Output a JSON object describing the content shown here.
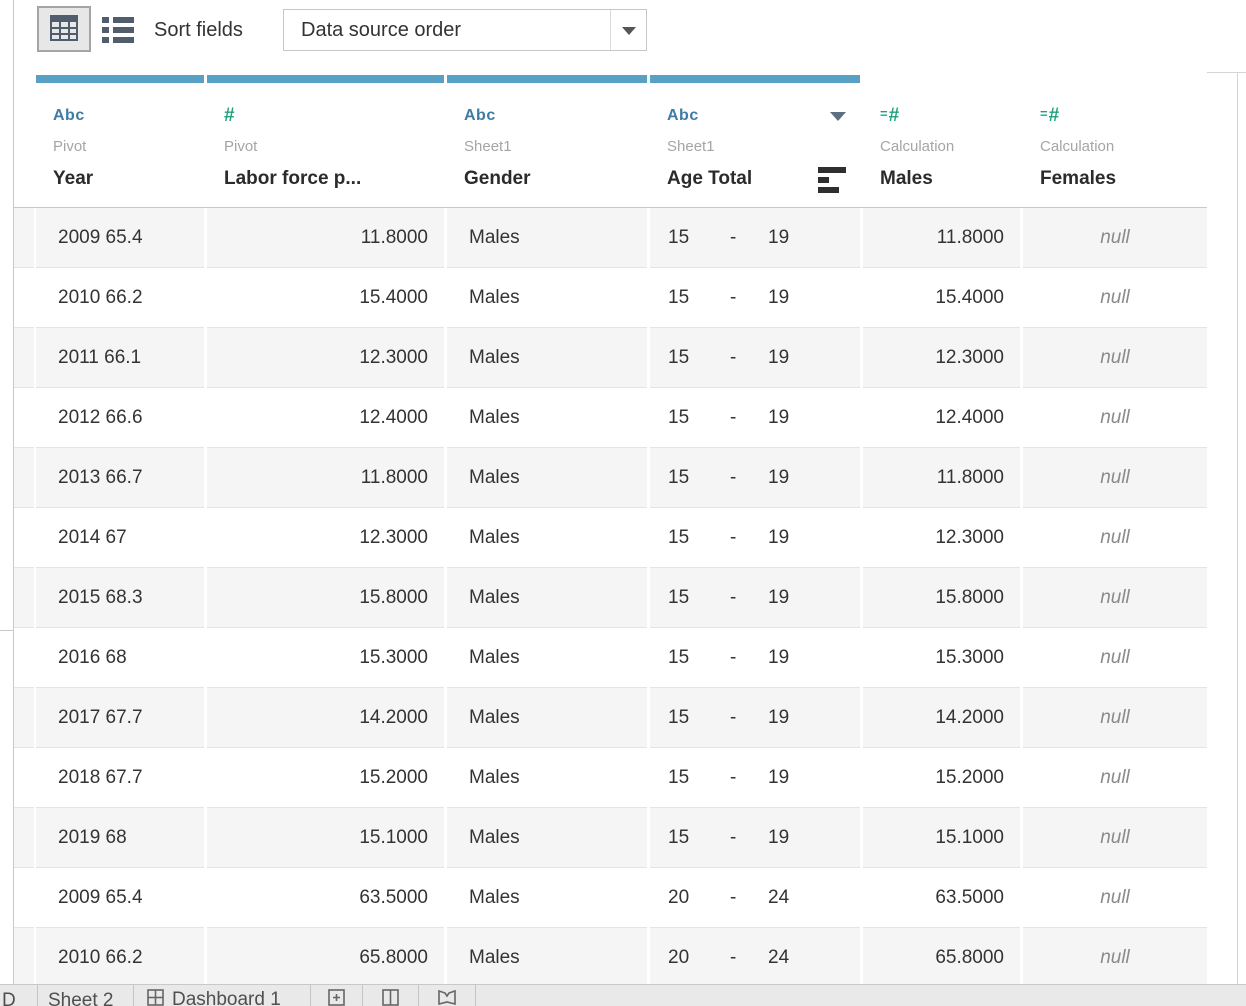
{
  "colors": {
    "column_accent_bar": "#58a1c4",
    "string_type_blue": "#3e7ca6",
    "number_type_green": "#21a27d",
    "row_alt_gray": "#f5f5f5",
    "null_text_gray": "#8a8a8a",
    "toolbar_icon_slate": "#4f5d6d"
  },
  "toolbar": {
    "sort_fields_label": "Sort fields",
    "sort_dropdown_value": "Data source order"
  },
  "grid": {
    "columns": [
      {
        "type_label": "Abc",
        "role": "Pivot",
        "name": "Year",
        "highlighted": true,
        "has_menu": false,
        "has_sort": false,
        "align": "left"
      },
      {
        "type_label": "#",
        "role": "Pivot",
        "name": "Labor force p...",
        "highlighted": true,
        "has_menu": false,
        "has_sort": false,
        "align": "right"
      },
      {
        "type_label": "Abc",
        "role": "Sheet1",
        "name": "Gender",
        "highlighted": true,
        "has_menu": false,
        "has_sort": false,
        "align": "left"
      },
      {
        "type_label": "Abc",
        "role": "Sheet1",
        "name": "Age Total",
        "highlighted": true,
        "has_menu": true,
        "has_sort": true,
        "align": "range"
      },
      {
        "type_label": "=#",
        "role": "Calculation",
        "name": "Males",
        "highlighted": false,
        "has_menu": false,
        "has_sort": false,
        "align": "right"
      },
      {
        "type_label": "=#",
        "role": "Calculation",
        "name": "Females",
        "highlighted": false,
        "has_menu": false,
        "has_sort": false,
        "align": "null"
      }
    ],
    "rows": [
      {
        "year": "2009 65.4",
        "labor": "11.8000",
        "gender": "Males",
        "age_from": "15",
        "age_dash": "-",
        "age_to": "19",
        "males": "11.8000",
        "females": "null"
      },
      {
        "year": "2010 66.2",
        "labor": "15.4000",
        "gender": "Males",
        "age_from": "15",
        "age_dash": "-",
        "age_to": "19",
        "males": "15.4000",
        "females": "null"
      },
      {
        "year": "2011 66.1",
        "labor": "12.3000",
        "gender": "Males",
        "age_from": "15",
        "age_dash": "-",
        "age_to": "19",
        "males": "12.3000",
        "females": "null"
      },
      {
        "year": "2012 66.6",
        "labor": "12.4000",
        "gender": "Males",
        "age_from": "15",
        "age_dash": "-",
        "age_to": "19",
        "males": "12.4000",
        "females": "null"
      },
      {
        "year": "2013 66.7",
        "labor": "11.8000",
        "gender": "Males",
        "age_from": "15",
        "age_dash": "-",
        "age_to": "19",
        "males": "11.8000",
        "females": "null"
      },
      {
        "year": "2014 67",
        "labor": "12.3000",
        "gender": "Males",
        "age_from": "15",
        "age_dash": "-",
        "age_to": "19",
        "males": "12.3000",
        "females": "null"
      },
      {
        "year": "2015 68.3",
        "labor": "15.8000",
        "gender": "Males",
        "age_from": "15",
        "age_dash": "-",
        "age_to": "19",
        "males": "15.8000",
        "females": "null"
      },
      {
        "year": "2016 68",
        "labor": "15.3000",
        "gender": "Males",
        "age_from": "15",
        "age_dash": "-",
        "age_to": "19",
        "males": "15.3000",
        "females": "null"
      },
      {
        "year": "2017 67.7",
        "labor": "14.2000",
        "gender": "Males",
        "age_from": "15",
        "age_dash": "-",
        "age_to": "19",
        "males": "14.2000",
        "females": "null"
      },
      {
        "year": "2018 67.7",
        "labor": "15.2000",
        "gender": "Males",
        "age_from": "15",
        "age_dash": "-",
        "age_to": "19",
        "males": "15.2000",
        "females": "null"
      },
      {
        "year": "2019 68",
        "labor": "15.1000",
        "gender": "Males",
        "age_from": "15",
        "age_dash": "-",
        "age_to": "19",
        "males": "15.1000",
        "females": "null"
      },
      {
        "year": "2009 65.4",
        "labor": "63.5000",
        "gender": "Males",
        "age_from": "20",
        "age_dash": "-",
        "age_to": "24",
        "males": "63.5000",
        "females": "null"
      },
      {
        "year": "2010 66.2",
        "labor": "65.8000",
        "gender": "Males",
        "age_from": "20",
        "age_dash": "-",
        "age_to": "24",
        "males": "65.8000",
        "females": "null"
      }
    ]
  },
  "tab_bar": {
    "partial_tab_label": "D",
    "sheet_tab_label": "Sheet 2",
    "dashboard_tab_label": "Dashboard 1"
  }
}
